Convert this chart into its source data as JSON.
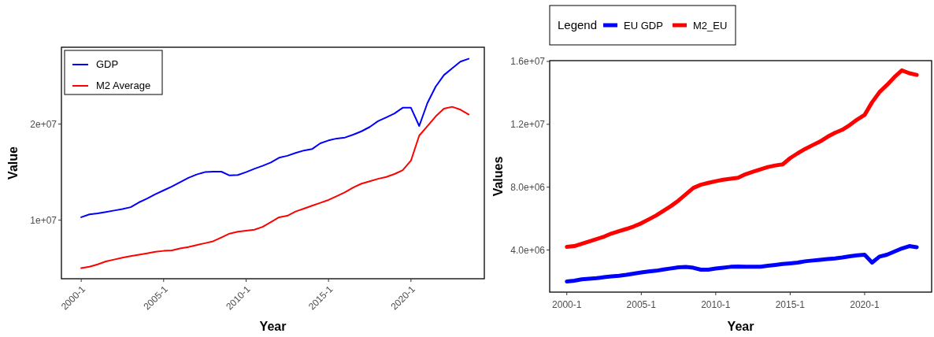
{
  "chart_data": [
    {
      "type": "line",
      "xlabel": "Year",
      "ylabel": "Value",
      "ylim": [
        3900000,
        28000000
      ],
      "categories": [
        "2000-1",
        null,
        null,
        null,
        null,
        null,
        null,
        null,
        null,
        null,
        "2005-1",
        null,
        null,
        null,
        null,
        null,
        null,
        null,
        null,
        null,
        "2010-1",
        null,
        null,
        null,
        null,
        null,
        null,
        null,
        null,
        null,
        "2015-1",
        null,
        null,
        null,
        null,
        null,
        null,
        null,
        null,
        null,
        "2020-1",
        null,
        null,
        null,
        null,
        null,
        null,
        null
      ],
      "yticks": [
        {
          "value": 10000000,
          "label": "1e+07"
        },
        {
          "value": 20000000,
          "label": "2e+07"
        }
      ],
      "legend": "top left",
      "series": [
        {
          "name": "GDP",
          "color": "#0000ff",
          "values": [
            10300000,
            10600000,
            10700000,
            10850000,
            11000000,
            11150000,
            11350000,
            11850000,
            12250000,
            12700000,
            13100000,
            13500000,
            13950000,
            14400000,
            14750000,
            15000000,
            15050000,
            15050000,
            14650000,
            14700000,
            15000000,
            15350000,
            15650000,
            16000000,
            16500000,
            16700000,
            17000000,
            17250000,
            17400000,
            18000000,
            18300000,
            18500000,
            18600000,
            18900000,
            19250000,
            19700000,
            20300000,
            20700000,
            21100000,
            21700000,
            21700000,
            19800000,
            22200000,
            23900000,
            25100000,
            25800000,
            26500000,
            26800000
          ]
        },
        {
          "name": "M2 Average",
          "color": "#ff0000",
          "values": [
            5000000,
            5150000,
            5400000,
            5700000,
            5900000,
            6100000,
            6250000,
            6400000,
            6550000,
            6700000,
            6800000,
            6850000,
            7050000,
            7200000,
            7400000,
            7600000,
            7800000,
            8200000,
            8600000,
            8800000,
            8900000,
            9000000,
            9300000,
            9800000,
            10300000,
            10450000,
            10900000,
            11200000,
            11500000,
            11800000,
            12100000,
            12500000,
            12900000,
            13400000,
            13800000,
            14050000,
            14300000,
            14500000,
            14800000,
            15200000,
            16200000,
            18800000,
            19800000,
            20800000,
            21600000,
            21800000,
            21500000,
            21000000
          ]
        }
      ]
    },
    {
      "type": "line",
      "xlabel": "Year",
      "ylabel": "Values",
      "legend_title": "Legend",
      "ylim": [
        1320000,
        16050000
      ],
      "categories": [
        "2000-1",
        null,
        null,
        null,
        null,
        null,
        null,
        null,
        null,
        null,
        "2005-1",
        null,
        null,
        null,
        null,
        null,
        null,
        null,
        null,
        null,
        "2010-1",
        null,
        null,
        null,
        null,
        null,
        null,
        null,
        null,
        null,
        "2015-1",
        null,
        null,
        null,
        null,
        null,
        null,
        null,
        null,
        null,
        "2020-1",
        null,
        null,
        null,
        null,
        null,
        null,
        null
      ],
      "yticks": [
        {
          "value": 4000000,
          "label": "4.0e+06"
        },
        {
          "value": 8000000,
          "label": "8.0e+06"
        },
        {
          "value": 12000000,
          "label": "1.2e+07"
        },
        {
          "value": 16000000,
          "label": "1.6e+07"
        }
      ],
      "legend": "top",
      "series": [
        {
          "name": "EU GDP",
          "color": "#0000ff",
          "values": [
            2000000,
            2050000,
            2130000,
            2170000,
            2210000,
            2270000,
            2320000,
            2360000,
            2420000,
            2500000,
            2570000,
            2630000,
            2680000,
            2760000,
            2830000,
            2900000,
            2920000,
            2870000,
            2750000,
            2750000,
            2820000,
            2870000,
            2930000,
            2950000,
            2930000,
            2930000,
            2940000,
            3000000,
            3050000,
            3110000,
            3150000,
            3200000,
            3280000,
            3330000,
            3370000,
            3420000,
            3460000,
            3520000,
            3600000,
            3660000,
            3700000,
            3200000,
            3580000,
            3700000,
            3900000,
            4100000,
            4250000,
            4180000
          ]
        },
        {
          "name": "M2_EU",
          "color": "#ff0000",
          "values": [
            4200000,
            4250000,
            4400000,
            4550000,
            4700000,
            4850000,
            5050000,
            5200000,
            5340000,
            5500000,
            5700000,
            5950000,
            6200000,
            6500000,
            6800000,
            7150000,
            7550000,
            7950000,
            8150000,
            8270000,
            8380000,
            8470000,
            8530000,
            8600000,
            8820000,
            8980000,
            9130000,
            9280000,
            9380000,
            9450000,
            9850000,
            10150000,
            10430000,
            10670000,
            10900000,
            11200000,
            11450000,
            11650000,
            11950000,
            12300000,
            12600000,
            13400000,
            14050000,
            14500000,
            15000000,
            15430000,
            15250000,
            15140000
          ]
        }
      ]
    }
  ]
}
